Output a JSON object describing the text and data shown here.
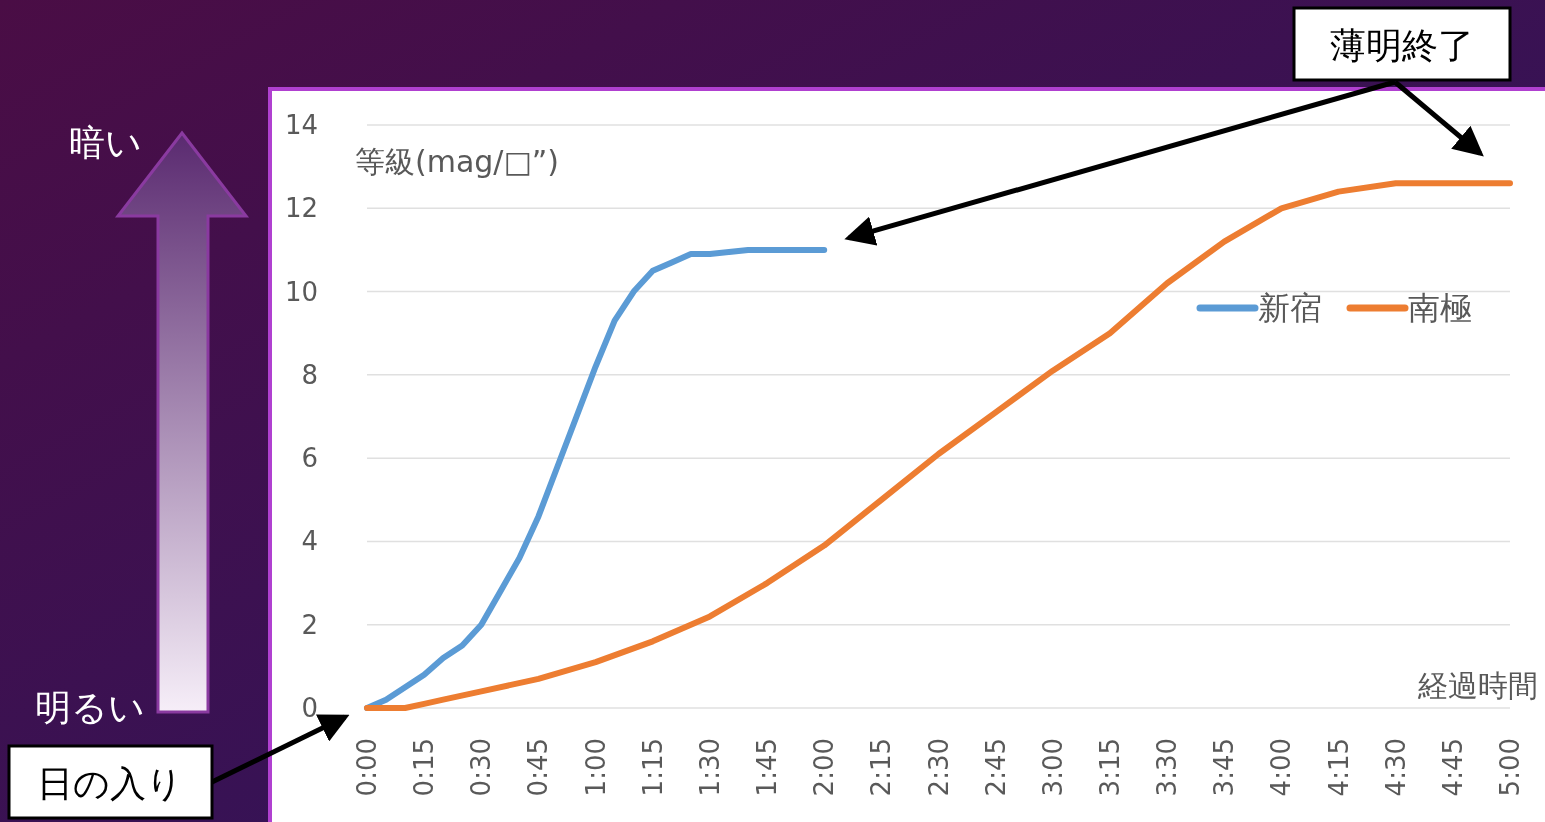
{
  "chart_data": {
    "type": "line",
    "xlabel": "経過時間",
    "ylabel": "等級(mag/□”)",
    "xlim": [
      0,
      5
    ],
    "ylim": [
      0,
      14
    ],
    "xticks": [
      {
        "value": 0,
        "label": "0:00"
      },
      {
        "value": 0.25,
        "label": "0:15"
      },
      {
        "value": 0.5,
        "label": "0:30"
      },
      {
        "value": 0.75,
        "label": "0:45"
      },
      {
        "value": 1,
        "label": "1:00"
      },
      {
        "value": 1.25,
        "label": "1:15"
      },
      {
        "value": 1.5,
        "label": "1:30"
      },
      {
        "value": 1.75,
        "label": "1:45"
      },
      {
        "value": 2,
        "label": "2:00"
      },
      {
        "value": 2.25,
        "label": "2:15"
      },
      {
        "value": 2.5,
        "label": "2:30"
      },
      {
        "value": 2.75,
        "label": "2:45"
      },
      {
        "value": 3,
        "label": "3:00"
      },
      {
        "value": 3.25,
        "label": "3:15"
      },
      {
        "value": 3.5,
        "label": "3:30"
      },
      {
        "value": 3.75,
        "label": "3:45"
      },
      {
        "value": 4,
        "label": "4:00"
      },
      {
        "value": 4.25,
        "label": "4:15"
      },
      {
        "value": 4.5,
        "label": "4:30"
      },
      {
        "value": 4.75,
        "label": "4:45"
      },
      {
        "value": 5,
        "label": "5:00"
      }
    ],
    "yticks": [
      0,
      2,
      4,
      6,
      8,
      10,
      12,
      14
    ],
    "grid": "y",
    "legend": "right",
    "series": [
      {
        "name": "新宿",
        "color": "#5b9bd5",
        "x": [
          0,
          0.0833,
          0.1667,
          0.25,
          0.3333,
          0.4167,
          0.5,
          0.5833,
          0.6667,
          0.75,
          0.8333,
          0.9167,
          1,
          1.0833,
          1.1667,
          1.25,
          1.3333,
          1.4167,
          1.5,
          1.6667,
          1.8333,
          2
        ],
        "values": [
          0,
          0.2,
          0.5,
          0.8,
          1.2,
          1.5,
          2.0,
          2.8,
          3.6,
          4.6,
          5.8,
          7.0,
          8.2,
          9.3,
          10.0,
          10.5,
          10.7,
          10.9,
          10.9,
          11.0,
          11.0,
          11.0
        ]
      },
      {
        "name": "南極",
        "color": "#ed7d31",
        "x": [
          0,
          0.1667,
          0.25,
          0.3333,
          0.5,
          0.75,
          1,
          1.25,
          1.5,
          1.75,
          2,
          2.25,
          2.5,
          2.75,
          3,
          3.25,
          3.5,
          3.75,
          4,
          4.25,
          4.5,
          4.75,
          5
        ],
        "values": [
          0,
          0,
          0.1,
          0.2,
          0.4,
          0.7,
          1.1,
          1.6,
          2.2,
          3.0,
          3.9,
          5.0,
          6.1,
          7.1,
          8.1,
          9.0,
          10.2,
          11.2,
          12.0,
          12.4,
          12.6,
          12.6,
          12.6
        ]
      }
    ],
    "annotations": [
      "暗い",
      "明るい",
      "日の入り",
      "薄明終了"
    ]
  }
}
